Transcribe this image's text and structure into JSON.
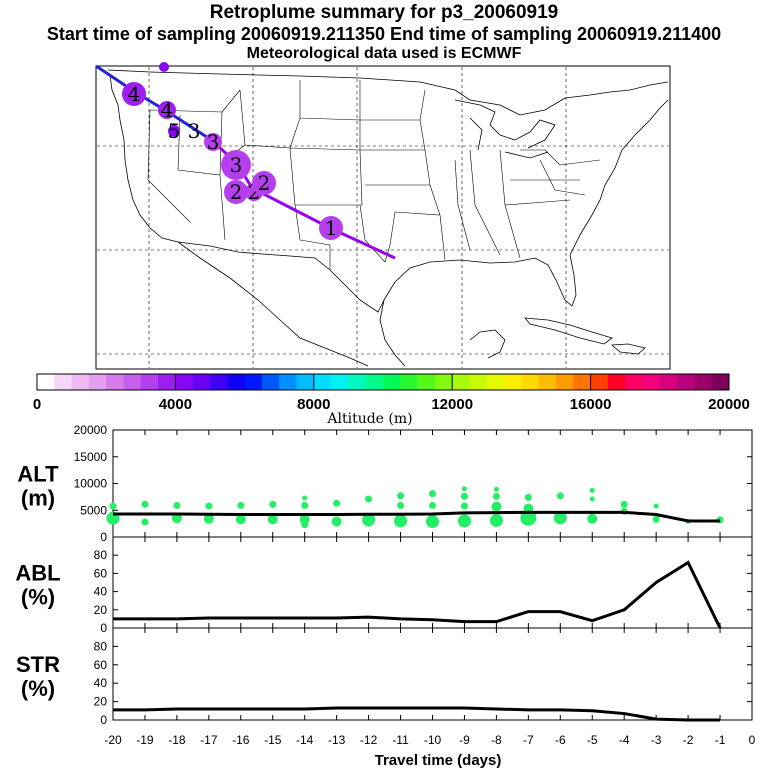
{
  "titles": {
    "line1": "Retroplume summary for p3_20060919",
    "line2": "Start time of sampling 20060919.211350     End time of sampling 20060919.211400",
    "line3": "Meteorological data used is ECMWF"
  },
  "colors": {
    "path_blue": "#2222dd",
    "path_purple": "#9900ee",
    "scatter_green": "#22ee66",
    "line_black": "#000000"
  },
  "map_markers": [
    {
      "label": "4",
      "altitude": 3600,
      "size": 3
    },
    {
      "label": "4",
      "altitude": 3900,
      "size": 2
    },
    {
      "label": "5",
      "altitude": 4100,
      "size": 1
    },
    {
      "label": "3",
      "altitude": 4000,
      "size": 0
    },
    {
      "label": "3",
      "altitude": 3000,
      "size": 2
    },
    {
      "label": "3",
      "altitude": 3100,
      "size": 4
    },
    {
      "label": "2",
      "altitude": 3000,
      "size": 3
    },
    {
      "label": "2",
      "altitude": 3100,
      "size": 2
    },
    {
      "label": "2",
      "altitude": 3000,
      "size": 3
    },
    {
      "label": "1",
      "altitude": 3200,
      "size": 3
    },
    {
      "label": "",
      "altitude": 4200,
      "size": 0
    }
  ],
  "colorbar": {
    "title": "Altitude (m)",
    "min": 0,
    "max": 20000,
    "tick_values": [
      0,
      4000,
      8000,
      12000,
      16000,
      20000
    ],
    "tick_labels": [
      "0",
      "4000",
      "8000",
      "12000",
      "16000",
      "20000"
    ],
    "colors": [
      "#ffffff",
      "#f6d6f6",
      "#eebbf2",
      "#e39ff0",
      "#d77cee",
      "#c860ee",
      "#b53eee",
      "#9e1ef2",
      "#8805f7",
      "#6a00f5",
      "#3f00f5",
      "#1000f5",
      "#0018ff",
      "#0058ff",
      "#0090ff",
      "#00bcff",
      "#00dcff",
      "#00f2f0",
      "#00f8bf",
      "#00fb8c",
      "#00fa55",
      "#28f730",
      "#55f818",
      "#82fa10",
      "#a8fa08",
      "#c8fa00",
      "#e4fa00",
      "#f8f000",
      "#ffd800",
      "#ffbc00",
      "#ff9c00",
      "#ff7400",
      "#ff4000",
      "#ff0028",
      "#ff0066",
      "#f4007c",
      "#d8007c",
      "#ba007c",
      "#9c006a",
      "#7e005a"
    ]
  },
  "chart_data": [
    {
      "type": "scatter+line",
      "panel_label": [
        "ALT",
        "(m)"
      ],
      "x": [
        -20,
        -19,
        -18,
        -17,
        -16,
        -15,
        -14,
        -13,
        -12,
        -11,
        -10,
        -9,
        -8,
        -7,
        -6,
        -5,
        -4,
        -3,
        -2,
        -1
      ],
      "line_values": [
        4300,
        4300,
        4300,
        4250,
        4200,
        4200,
        4200,
        4200,
        4250,
        4250,
        4300,
        4500,
        4550,
        4600,
        4600,
        4600,
        4600,
        4200,
        3000,
        3000
      ],
      "scatter": [
        {
          "x": -20,
          "y": 5800,
          "size": 2
        },
        {
          "x": -20,
          "y": 3500,
          "size": 4
        },
        {
          "x": -19,
          "y": 6100,
          "size": 2
        },
        {
          "x": -19,
          "y": 2800,
          "size": 2
        },
        {
          "x": -18,
          "y": 5900,
          "size": 2
        },
        {
          "x": -18,
          "y": 3500,
          "size": 3
        },
        {
          "x": -17,
          "y": 5800,
          "size": 2
        },
        {
          "x": -17,
          "y": 3400,
          "size": 3
        },
        {
          "x": -16,
          "y": 5900,
          "size": 2
        },
        {
          "x": -16,
          "y": 3300,
          "size": 3
        },
        {
          "x": -15,
          "y": 6100,
          "size": 2
        },
        {
          "x": -15,
          "y": 3300,
          "size": 3
        },
        {
          "x": -14,
          "y": 7300,
          "size": 1
        },
        {
          "x": -14,
          "y": 5900,
          "size": 2
        },
        {
          "x": -14,
          "y": 3300,
          "size": 3
        },
        {
          "x": -14,
          "y": 2300,
          "size": 2
        },
        {
          "x": -13,
          "y": 6300,
          "size": 2
        },
        {
          "x": -13,
          "y": 2900,
          "size": 3
        },
        {
          "x": -12,
          "y": 7100,
          "size": 2
        },
        {
          "x": -12,
          "y": 3200,
          "size": 4
        },
        {
          "x": -11,
          "y": 7700,
          "size": 2
        },
        {
          "x": -11,
          "y": 5900,
          "size": 2
        },
        {
          "x": -11,
          "y": 3000,
          "size": 4
        },
        {
          "x": -10,
          "y": 8100,
          "size": 2
        },
        {
          "x": -10,
          "y": 5900,
          "size": 2
        },
        {
          "x": -10,
          "y": 2900,
          "size": 4
        },
        {
          "x": -9,
          "y": 9000,
          "size": 1
        },
        {
          "x": -9,
          "y": 7600,
          "size": 2
        },
        {
          "x": -9,
          "y": 5800,
          "size": 2
        },
        {
          "x": -9,
          "y": 3000,
          "size": 4
        },
        {
          "x": -8,
          "y": 8900,
          "size": 1
        },
        {
          "x": -8,
          "y": 7600,
          "size": 2
        },
        {
          "x": -8,
          "y": 5700,
          "size": 3
        },
        {
          "x": -8,
          "y": 3100,
          "size": 4
        },
        {
          "x": -7,
          "y": 7400,
          "size": 2
        },
        {
          "x": -7,
          "y": 5300,
          "size": 3
        },
        {
          "x": -7,
          "y": 3600,
          "size": 5
        },
        {
          "x": -6,
          "y": 7700,
          "size": 2
        },
        {
          "x": -6,
          "y": 3600,
          "size": 4
        },
        {
          "x": -5,
          "y": 8700,
          "size": 1
        },
        {
          "x": -5,
          "y": 7100,
          "size": 1
        },
        {
          "x": -5,
          "y": 3400,
          "size": 3
        },
        {
          "x": -4,
          "y": 6100,
          "size": 2
        },
        {
          "x": -4,
          "y": 4800,
          "size": 2
        },
        {
          "x": -3,
          "y": 5800,
          "size": 1
        },
        {
          "x": -3,
          "y": 3300,
          "size": 2
        },
        {
          "x": -2,
          "y": 2900,
          "size": 1
        },
        {
          "x": -1,
          "y": 3200,
          "size": 2
        }
      ],
      "ylim": [
        0,
        20000
      ],
      "yticks": [
        0,
        5000,
        10000,
        15000,
        20000
      ],
      "ytick_labels": [
        "0",
        "5000",
        "10000",
        "15000",
        "20000"
      ]
    },
    {
      "type": "line",
      "panel_label": [
        "ABL",
        "(%)"
      ],
      "x": [
        -20,
        -19,
        -18,
        -17,
        -16,
        -15,
        -14,
        -13,
        -12,
        -11,
        -10,
        -9,
        -8,
        -7,
        -6,
        -5,
        -4,
        -3,
        -2,
        -1
      ],
      "values": [
        10,
        10,
        10,
        11,
        11,
        11,
        11,
        11,
        12,
        10,
        9,
        7,
        7,
        18,
        18,
        8,
        20,
        50,
        72,
        0
      ],
      "ylim": [
        0,
        100
      ],
      "yticks": [
        0,
        20,
        40,
        60,
        80
      ],
      "ytick_labels": [
        "0",
        "20",
        "40",
        "60",
        "80"
      ]
    },
    {
      "type": "line",
      "panel_label": [
        "STR",
        "(%)"
      ],
      "x": [
        -20,
        -19,
        -18,
        -17,
        -16,
        -15,
        -14,
        -13,
        -12,
        -11,
        -10,
        -9,
        -8,
        -7,
        -6,
        -5,
        -4,
        -3,
        -2,
        -1
      ],
      "values": [
        11,
        11,
        12,
        12,
        12,
        12,
        12,
        13,
        13,
        13,
        13,
        13,
        12,
        11,
        11,
        10,
        7,
        1,
        0,
        0
      ],
      "ylim": [
        0,
        100
      ],
      "yticks": [
        0,
        20,
        40,
        60,
        80
      ],
      "ytick_labels": [
        "0",
        "20",
        "40",
        "60",
        "80"
      ]
    }
  ],
  "x_axis": {
    "ticks": [
      -20,
      -19,
      -18,
      -17,
      -16,
      -15,
      -14,
      -13,
      -12,
      -11,
      -10,
      -9,
      -8,
      -7,
      -6,
      -5,
      -4,
      -3,
      -2,
      -1,
      0
    ],
    "tick_labels": [
      "-20",
      "-19",
      "-18",
      "-17",
      "-16",
      "-15",
      "-14",
      "-13",
      "-12",
      "-11",
      "-10",
      "-9",
      "-8",
      "-7",
      "-6",
      "-5",
      "-4",
      "-3",
      "-2",
      "-1",
      "0"
    ],
    "label": "Travel time (days)",
    "xlim": [
      -20,
      0
    ]
  }
}
